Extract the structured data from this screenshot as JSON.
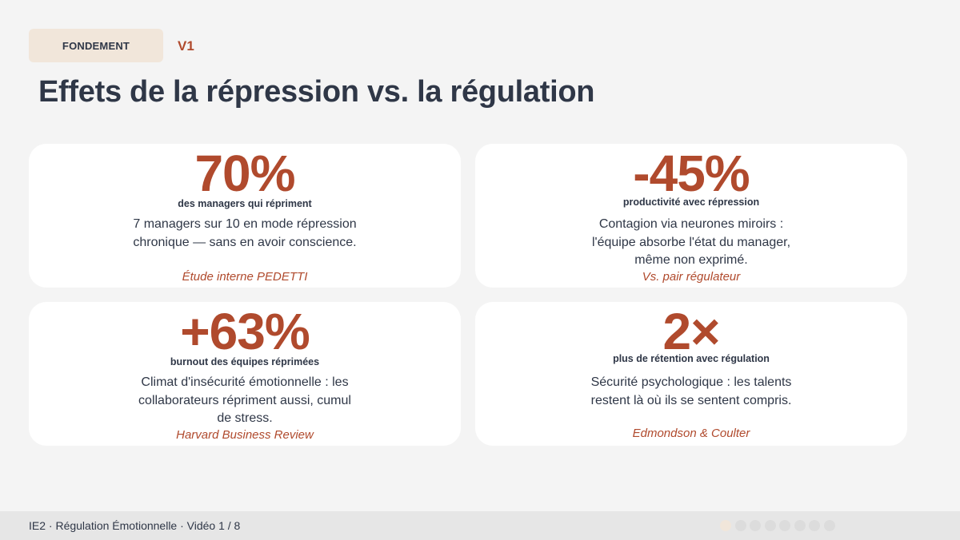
{
  "header": {
    "tag": "FONDEMENT",
    "version": "V1",
    "title": "Effets de la répression vs. la régulation"
  },
  "cards": [
    {
      "stat": "70%",
      "label": "des managers qui répriment",
      "description": "7 managers sur 10 en mode répression chronique — sans en avoir conscience.",
      "source": "Étude interne PEDETTI"
    },
    {
      "stat": "-45%",
      "label": "productivité avec répression",
      "description": "Contagion via neurones miroirs : l'équipe absorbe l'état du manager, même non exprimé.",
      "source": "Vs. pair régulateur"
    },
    {
      "stat": "+63%",
      "label": "burnout des équipes réprimées",
      "description": "Climat d'insécurité émotionnelle : les collaborateurs répriment aussi, cumul de stress.",
      "source": "Harvard Business Review"
    },
    {
      "stat": "2×",
      "label": "plus de rétention avec régulation",
      "description": "Sécurité psychologique : les talents restent là où ils se sentent compris.",
      "source": "Edmondson & Coulter"
    }
  ],
  "footer": {
    "text": "IE2 · Régulation Émotionnelle · Vidéo 1 / 8",
    "progress": {
      "current": 1,
      "total": 8
    }
  },
  "colors": {
    "accent": "#b04a2d",
    "text": "#2f3747",
    "tag_bg": "#f1e6da",
    "background": "#f4f4f4"
  }
}
